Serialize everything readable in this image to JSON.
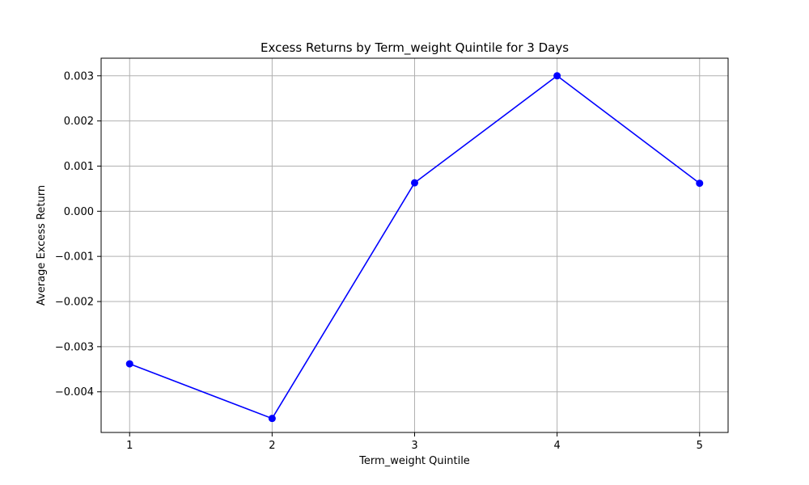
{
  "chart_data": {
    "type": "line",
    "title": "Excess Returns by Term_weight Quintile for 3 Days",
    "xlabel": "Term_weight Quintile",
    "ylabel": "Average Excess Return",
    "x": [
      1,
      2,
      3,
      4,
      5
    ],
    "x_tick_labels": [
      "1",
      "2",
      "3",
      "4",
      "5"
    ],
    "series": [
      {
        "values": [
          -0.00338,
          -0.00459,
          0.00063,
          0.003,
          0.00062
        ]
      }
    ],
    "y_ticks": [
      -0.004,
      -0.003,
      -0.002,
      -0.001,
      0.0,
      0.001,
      0.002,
      0.003
    ],
    "y_tick_labels": [
      "−0.004",
      "−0.003",
      "−0.002",
      "−0.001",
      "0.000",
      "0.001",
      "0.002",
      "0.003"
    ],
    "xlim": [
      0.8,
      5.2
    ],
    "ylim": [
      -0.0049,
      0.00339
    ],
    "grid": true,
    "line_color": "#0000ff",
    "marker": "circle"
  }
}
